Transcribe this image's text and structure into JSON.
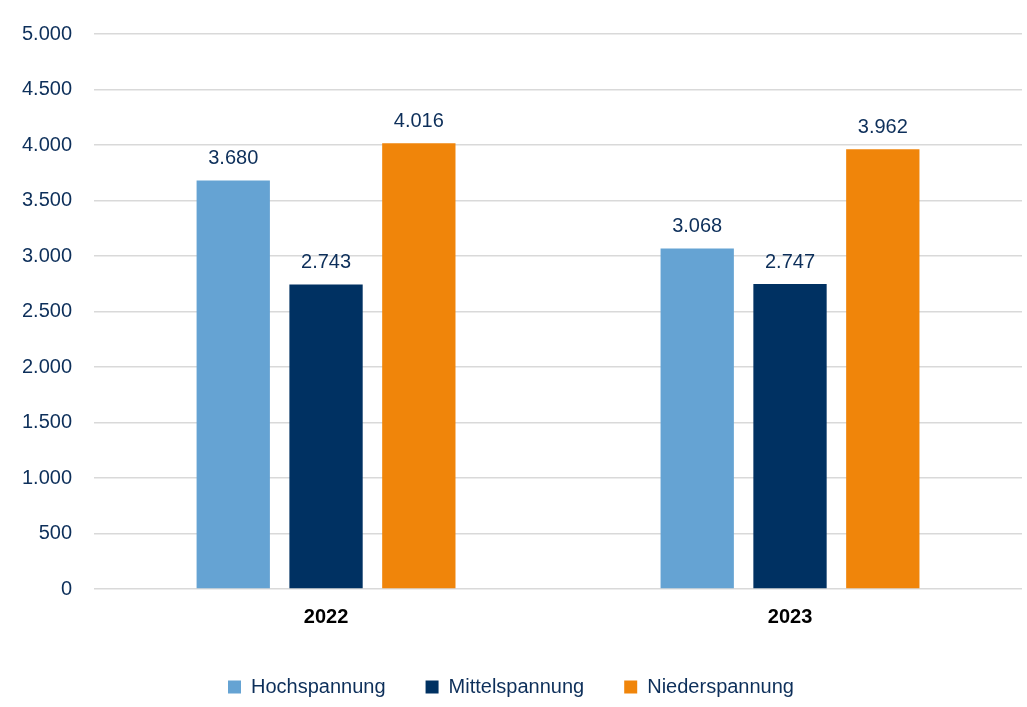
{
  "chart_data": {
    "type": "bar",
    "categories": [
      "2022",
      "2023"
    ],
    "series": [
      {
        "name": "Hochspannung",
        "color": "#65a3d3",
        "values": [
          3680,
          3068
        ],
        "value_labels": [
          "3.680",
          "3.068"
        ]
      },
      {
        "name": "Mittelspannung",
        "color": "#003162",
        "values": [
          2743,
          2747
        ],
        "value_labels": [
          "2.743",
          "2.747"
        ]
      },
      {
        "name": "Niederspannung",
        "color": "#f0850a",
        "values": [
          4016,
          3962
        ],
        "value_labels": [
          "4.016",
          "3.962"
        ]
      }
    ],
    "ylim": [
      0,
      5000
    ],
    "yticks": [
      0,
      500,
      {
        "value": 1000,
        "label": "1.000"
      },
      {
        "value": 1500,
        "label": "1.500"
      },
      {
        "value": 2000,
        "label": "2.000"
      },
      {
        "value": 2500,
        "label": "2.500"
      },
      {
        "value": 3000,
        "label": "3.000"
      },
      {
        "value": 3500,
        "label": "3.500"
      },
      {
        "value": 4000,
        "label": "4.000"
      },
      {
        "value": 4500,
        "label": "4.500"
      },
      {
        "value": 5000,
        "label": "5.000"
      }
    ],
    "grid": "y",
    "legend": "bottom"
  }
}
